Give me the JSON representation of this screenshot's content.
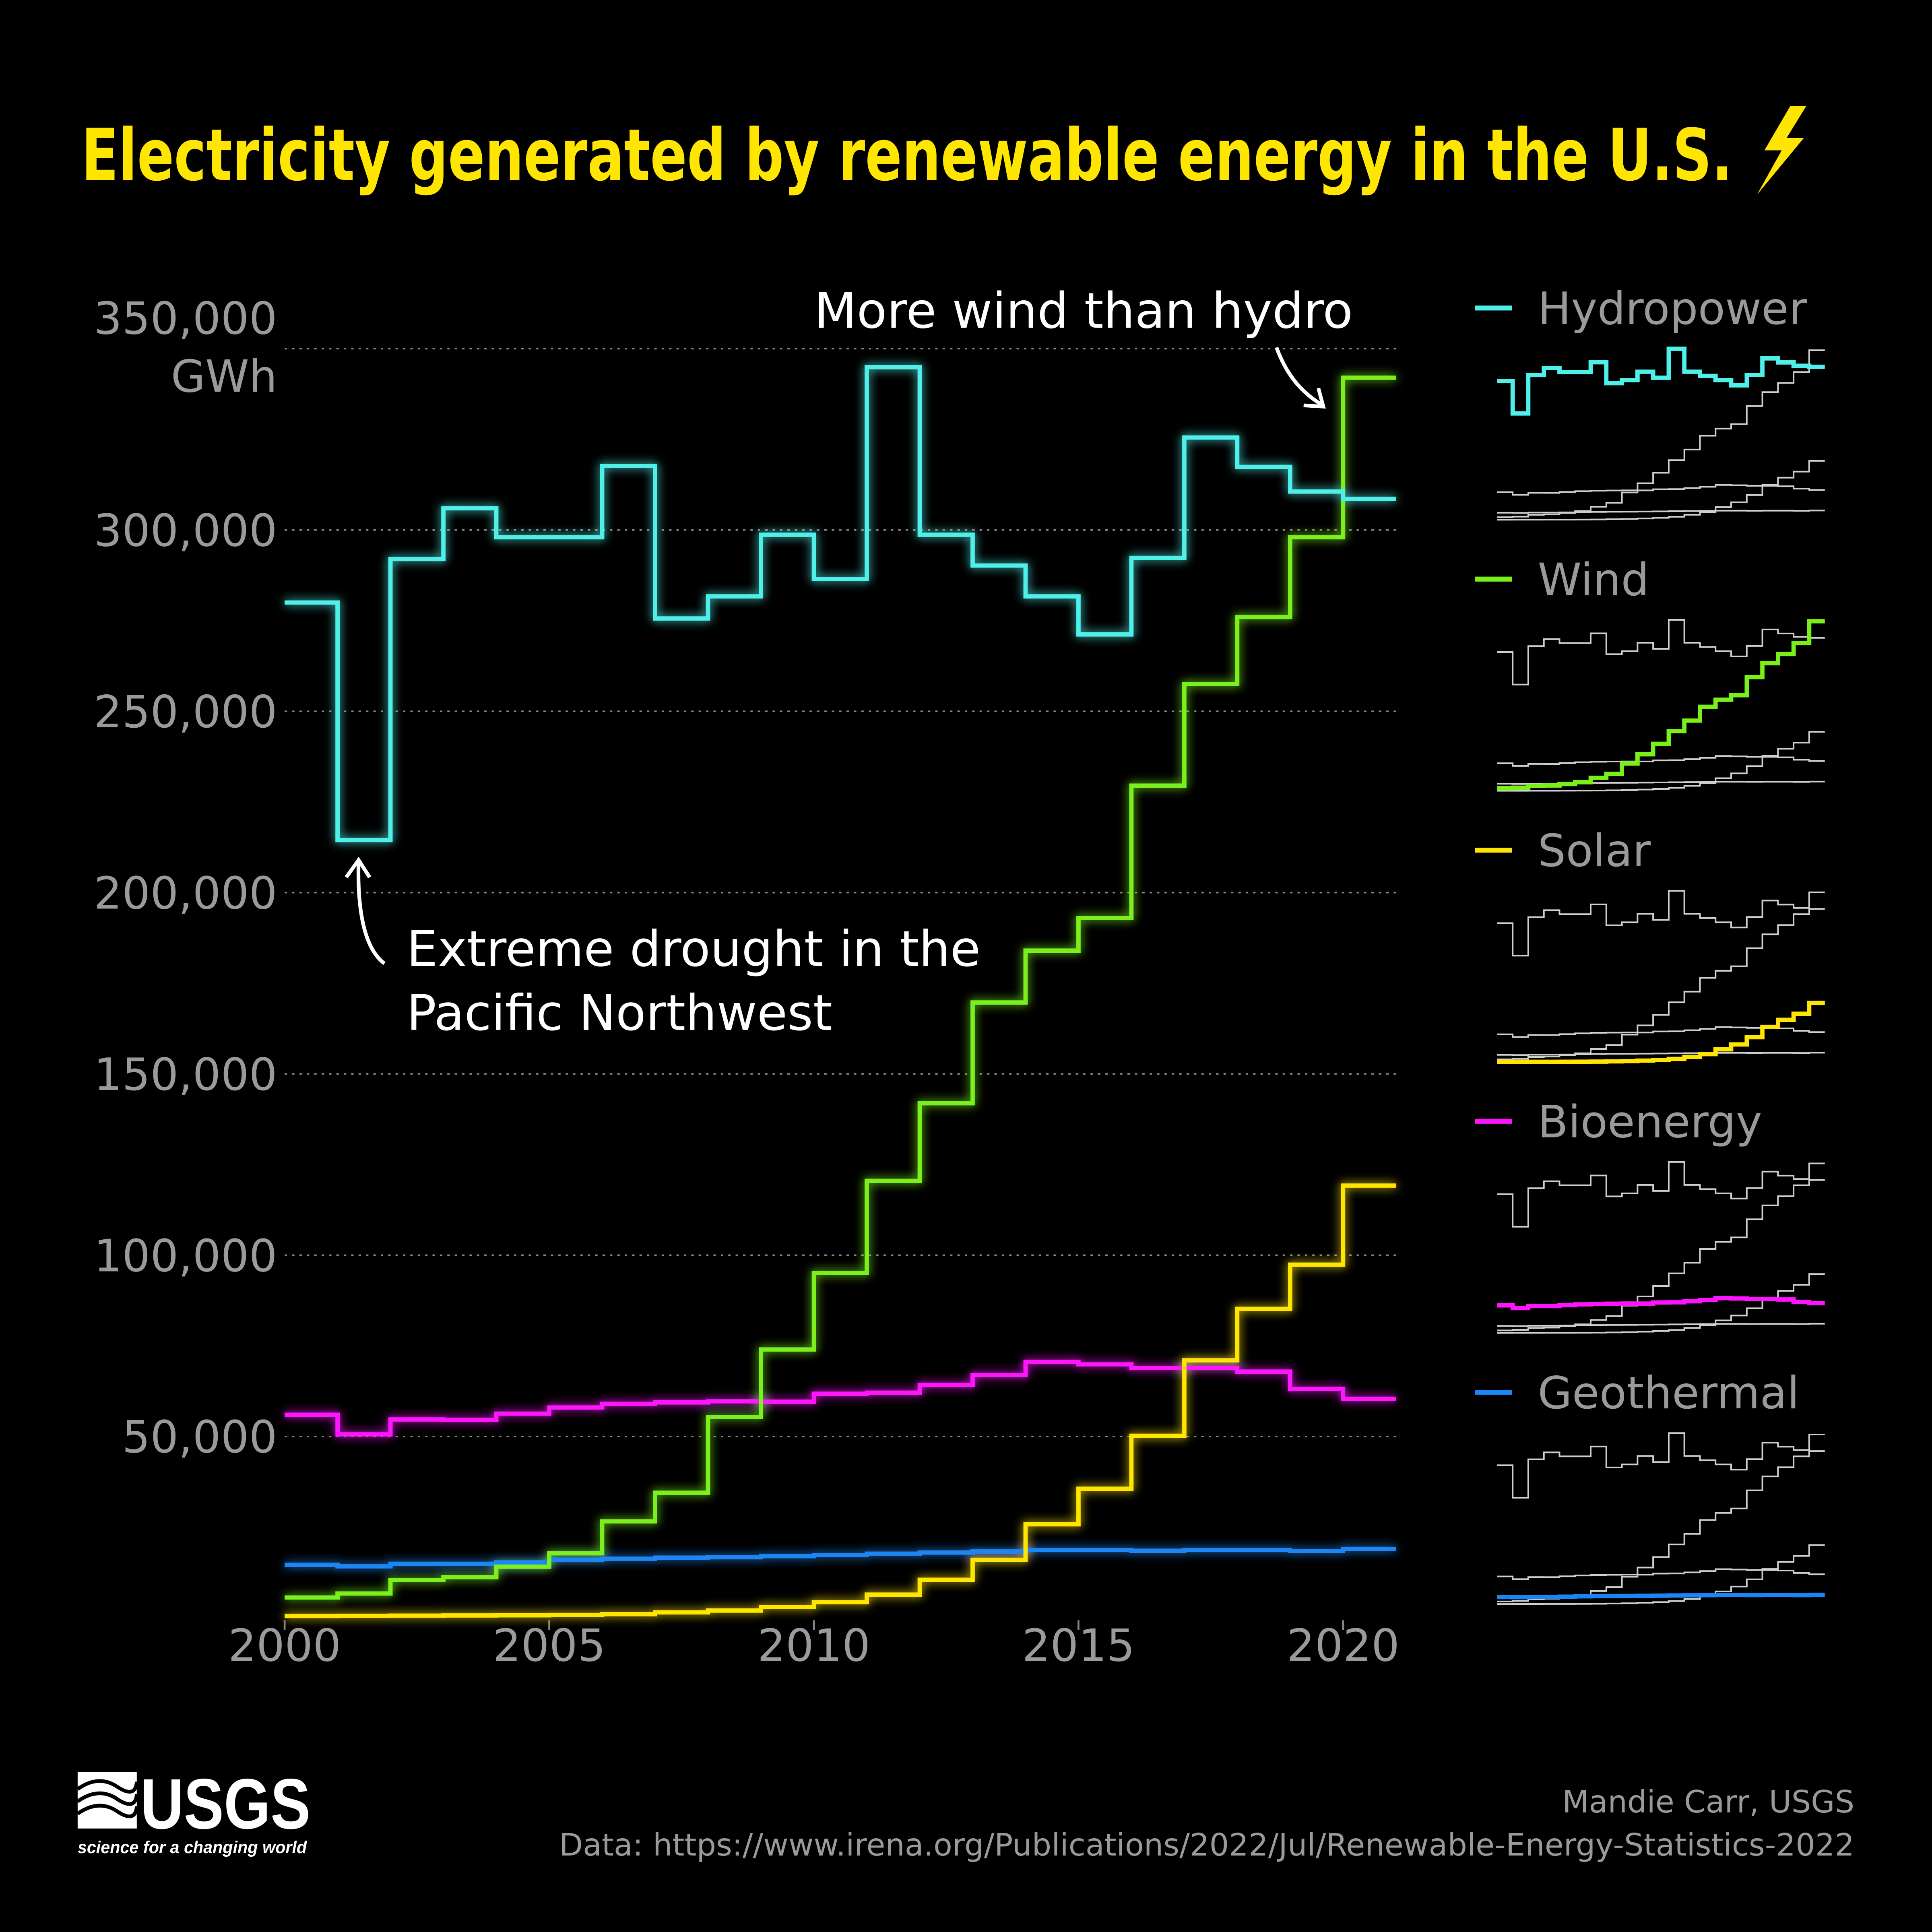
{
  "title": "Electricity generated by renewable energy in the U.S.",
  "chart_data": {
    "type": "line",
    "step": true,
    "ylabel": "GWh",
    "x": [
      2000,
      2001,
      2002,
      2003,
      2004,
      2005,
      2006,
      2007,
      2008,
      2009,
      2010,
      2011,
      2012,
      2013,
      2014,
      2015,
      2016,
      2017,
      2018,
      2019,
      2020
    ],
    "xlim": [
      2000,
      2021
    ],
    "ylim": [
      0,
      350000
    ],
    "xticks": [
      "2000",
      "2005",
      "2010",
      "2015",
      "2020"
    ],
    "yticks": [
      "50,000",
      "100,000",
      "150,000",
      "200,000",
      "250,000",
      "300,000",
      "350,000"
    ],
    "grid": "horizontal dotted",
    "series": [
      {
        "name": "Hydropower",
        "color": "#4ff0ea",
        "values": [
          280000,
          214500,
          292000,
          306000,
          298000,
          298000,
          317700,
          275600,
          281700,
          298700,
          286500,
          344900,
          298700,
          290200,
          281700,
          271200,
          292300,
          325500,
          317400,
          310600,
          308600
        ]
      },
      {
        "name": "Wind",
        "color": "#7af01a",
        "values": [
          5600,
          6700,
          10400,
          11200,
          14100,
          17800,
          26600,
          34500,
          55400,
          74000,
          95100,
          120500,
          141900,
          169700,
          184000,
          193000,
          229500,
          257500,
          276000,
          298000,
          342000
        ]
      },
      {
        "name": "Solar",
        "color": "#ffe600",
        "values": [
          500,
          550,
          600,
          650,
          700,
          800,
          1000,
          1500,
          2000,
          3000,
          4300,
          6400,
          10500,
          16000,
          25800,
          35600,
          50200,
          71000,
          85200,
          97400,
          119200
        ]
      },
      {
        "name": "Bioenergy",
        "color": "#ff14ff",
        "values": [
          56000,
          50600,
          54700,
          54600,
          56300,
          58000,
          59000,
          59400,
          59700,
          59600,
          61800,
          62100,
          64200,
          66900,
          70600,
          69900,
          68900,
          68900,
          67900,
          63100,
          60400
        ]
      },
      {
        "name": "Geothermal",
        "color": "#1a86f5",
        "values": [
          14600,
          14200,
          14900,
          14900,
          15300,
          16000,
          16300,
          16600,
          16700,
          17000,
          17300,
          17700,
          18000,
          18300,
          18700,
          18700,
          18500,
          18700,
          18700,
          18400,
          19000
        ]
      }
    ],
    "legend": "right, small multiples",
    "annotations": [
      {
        "text_lines": [
          "Extreme drought in the",
          "Pacific Northwest"
        ]
      },
      {
        "text_lines": [
          "More wind than hydro"
        ]
      }
    ]
  },
  "footer": {
    "logo": "USGS",
    "logo_tagline": "science for a changing world",
    "author": "Mandie Carr, USGS",
    "source": "Data: https://www.irena.org/Publications/2022/Jul/Renewable-Energy-Statistics-2022"
  }
}
